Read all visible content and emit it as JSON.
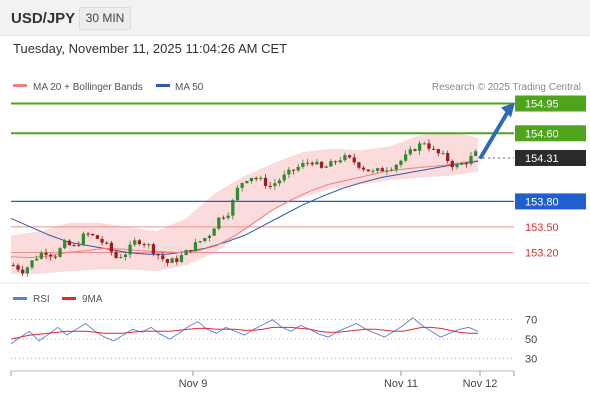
{
  "header": {
    "symbol": "USD/JPY",
    "timeframe": "30 MIN"
  },
  "timestamp": "Tuesday, November 11, 2025 11:04:26 AM CET",
  "legend": {
    "ma20": "MA 20 + Bollinger Bands",
    "ma50": "MA 50",
    "rsi": "RSI",
    "rsi_ma": "9MA"
  },
  "credit": "Research © 2025 Trading Central",
  "colors": {
    "up_candle": "#2e8b2e",
    "down_candle": "#a01c1c",
    "bb_fill": "#fbdcdc",
    "ma20": "#f08080",
    "ma50": "#2f5aa8",
    "target_green": "#4ea41c",
    "pivot_blue": "#1f5fcf",
    "support_red": "#ef8f8f",
    "support_label_red": "#d83030",
    "arrow": "#2f6bb3",
    "current_dark": "#2b2b2b",
    "rsi_line": "#5b7fd8",
    "rsi_ma_line": "#e02b2b"
  },
  "chart_data": [
    {
      "type": "candlestick",
      "x_tick_labels": [
        "Nov 9",
        "Nov 11",
        "Nov 12"
      ],
      "ylim": [
        152.9,
        155.05
      ],
      "levels": [
        {
          "label": "154.95",
          "value": 154.95,
          "kind": "target"
        },
        {
          "label": "154.60",
          "value": 154.6,
          "kind": "target"
        },
        {
          "label": "154.31",
          "value": 154.31,
          "kind": "current"
        },
        {
          "label": "153.80",
          "value": 153.8,
          "kind": "pivot"
        },
        {
          "label": "153.50",
          "value": 153.5,
          "kind": "support"
        },
        {
          "label": "153.20",
          "value": 153.2,
          "kind": "support"
        }
      ],
      "projection": {
        "from": 154.31,
        "to": 154.95
      },
      "price_path": [
        153.05,
        152.98,
        153.12,
        153.22,
        153.16,
        153.3,
        153.26,
        153.42,
        153.38,
        153.29,
        153.14,
        153.2,
        153.35,
        153.3,
        153.18,
        153.08,
        153.12,
        153.22,
        153.32,
        153.4,
        153.6,
        153.68,
        154.0,
        154.1,
        154.05,
        153.98,
        154.06,
        154.15,
        154.22,
        154.28,
        154.18,
        154.24,
        154.32,
        154.28,
        154.2,
        154.14,
        154.18,
        154.22,
        154.3,
        154.42,
        154.5,
        154.38,
        154.32,
        154.2,
        154.26,
        154.36
      ],
      "ma20_path": [
        153.15,
        153.14,
        153.16,
        153.2,
        153.22,
        153.25,
        153.24,
        153.22,
        153.21,
        153.2,
        153.22,
        153.28,
        153.4,
        153.55,
        153.7,
        153.82,
        153.92,
        154.0,
        154.05,
        154.1,
        154.15,
        154.18,
        154.2,
        154.22,
        154.25,
        154.28
      ],
      "ma50_path": [
        153.6,
        153.5,
        153.4,
        153.32,
        153.28,
        153.24,
        153.2,
        153.18,
        153.18,
        153.21,
        153.25,
        153.32,
        153.4,
        153.52,
        153.64,
        153.76,
        153.86,
        153.95,
        154.02,
        154.08,
        154.12,
        154.16,
        154.2,
        154.24,
        154.27
      ],
      "bb_upper_path": [
        153.4,
        153.45,
        153.55,
        153.55,
        153.5,
        153.45,
        153.6,
        153.9,
        154.1,
        154.25,
        154.38,
        154.42,
        154.4,
        154.45,
        154.58,
        154.62,
        154.55
      ],
      "bb_lower_path": [
        152.95,
        152.95,
        152.98,
        153.0,
        153.0,
        152.98,
        153.05,
        153.2,
        153.45,
        153.7,
        153.85,
        153.95,
        154.0,
        154.05,
        154.08,
        154.1,
        154.15
      ],
      "legend": [
        "MA 20 + Bollinger Bands",
        "MA 50"
      ]
    },
    {
      "type": "line",
      "ylim": [
        20,
        80
      ],
      "y_tick_labels": [
        "70",
        "50",
        "30"
      ],
      "y_ticks": [
        70,
        50,
        30
      ],
      "series": [
        {
          "name": "RSI",
          "values": [
            45,
            52,
            58,
            48,
            55,
            62,
            54,
            60,
            66,
            58,
            52,
            48,
            54,
            60,
            57,
            62,
            55,
            50,
            56,
            63,
            68,
            60,
            56,
            62,
            58,
            54,
            60,
            65,
            70,
            62,
            58,
            64,
            60,
            55,
            52,
            58,
            62,
            66,
            60,
            56,
            52,
            58,
            64,
            72,
            64,
            58,
            52,
            56,
            60,
            62,
            58
          ]
        },
        {
          "name": "9MA",
          "values": [
            50,
            52,
            54,
            55,
            56,
            57,
            58,
            58,
            58,
            57,
            56,
            56,
            56,
            57,
            58,
            58,
            58,
            58,
            59,
            60,
            61,
            61,
            60,
            60,
            60,
            59,
            59,
            60,
            62,
            62,
            62,
            61,
            60,
            58,
            57,
            57,
            58,
            59,
            60,
            60,
            59,
            58,
            58,
            60,
            62,
            62,
            61,
            59,
            57,
            56,
            56
          ]
        }
      ]
    }
  ]
}
